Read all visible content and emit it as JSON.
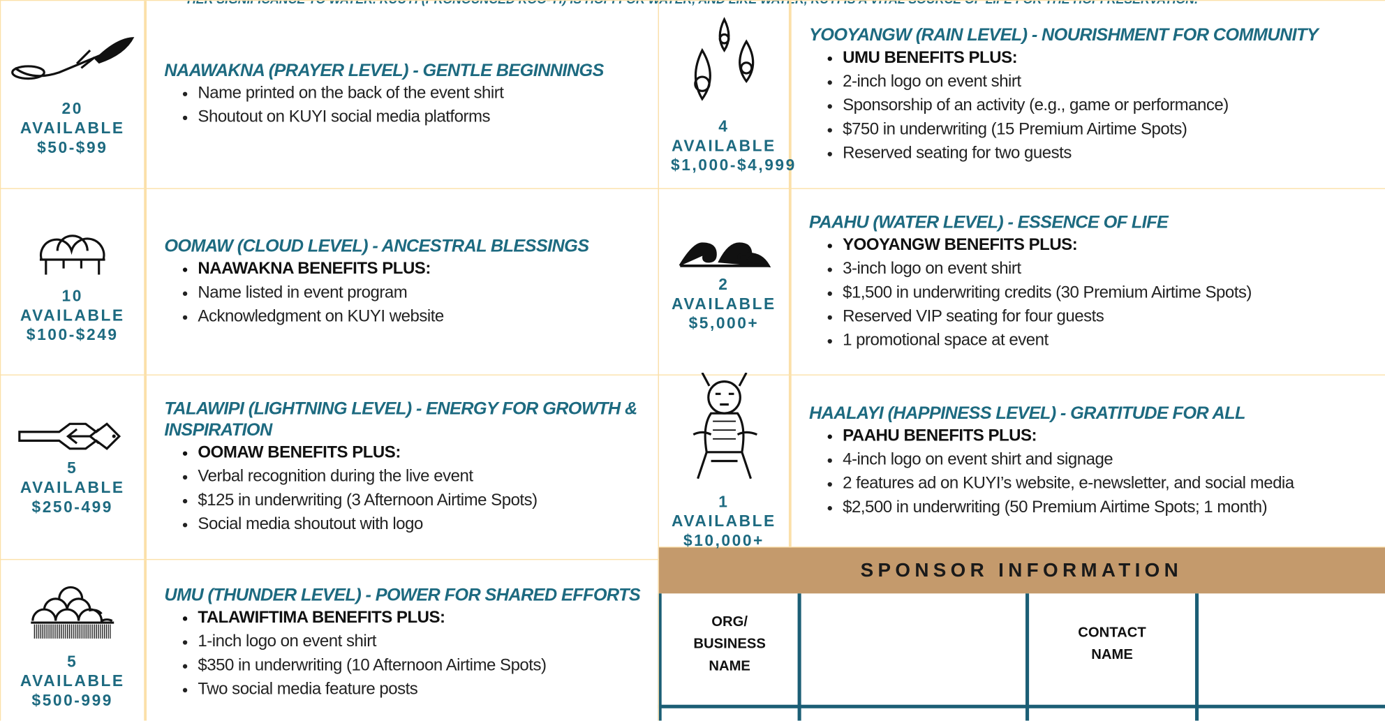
{
  "header": {
    "text": "HER SIGNIFICANCE TO WATER. KUUYI (PRONOUNCED KOO-YI) IS HOPI FOR WATER, AND LIKE WATER, KUYI IS A VITAL SOURCE OF LIFE FOR THE HOPI RESERVATION."
  },
  "left_tiers": [
    {
      "count": "20",
      "available": "AVAILABLE",
      "price": "$50-$99",
      "title": "NAAWAKNA (PRAYER LEVEL) -  GENTLE BEGINNINGS",
      "benefits": [
        "Name printed on the back of the event shirt",
        "Shoutout on KUYI social media platforms"
      ]
    },
    {
      "count": "10",
      "available": "AVAILABLE",
      "price": "$100-$249",
      "title": "OOMAW (CLOUD LEVEL) -  ANCESTRAL BLESSINGS",
      "lead": "NAAWAKNA BENEFITS PLUS:",
      "benefits": [
        "Name listed in event program",
        "Acknowledgment on KUYI website"
      ]
    },
    {
      "count": "5",
      "available": "AVAILABLE",
      "price": "$250-499",
      "title": "TALAWIPI (LIGHTNING LEVEL) -  ENERGY FOR GROWTH & INSPIRATION",
      "lead": "OOMAW BENEFITS PLUS:",
      "benefits": [
        "Verbal recognition during the live event",
        "$125 in underwriting (3 Afternoon Airtime Spots)",
        "Social media shoutout with logo"
      ]
    },
    {
      "count": "5",
      "available": "AVAILABLE",
      "price": "$500-999",
      "title": "UMU (THUNDER LEVEL) - POWER FOR SHARED EFFORTS",
      "lead": "TALAWIFTIMA BENEFITS PLUS:",
      "benefits": [
        "1-inch logo on event shirt",
        "$350 in underwriting (10 Afternoon Airtime Spots)",
        "Two social media feature posts"
      ]
    }
  ],
  "right_tiers": [
    {
      "count": "4",
      "available": "AVAILABLE",
      "price": "$1,000-$4,999",
      "title": "YOOYANGW (RAIN LEVEL) - NOURISHMENT FOR COMMUNITY",
      "lead": "UMU BENEFITS PLUS:",
      "benefits": [
        "2-inch logo on event shirt",
        "Sponsorship of an activity (e.g., game or performance)",
        "$750 in underwriting (15 Premium Airtime Spots)",
        "Reserved seating for two guests"
      ]
    },
    {
      "count": "2",
      "available": "AVAILABLE",
      "price": "$5,000+",
      "title": "PAAHU (WATER LEVEL) -  ESSENCE OF LIFE",
      "lead": "YOOYANGW BENEFITS PLUS:",
      "benefits": [
        "3-inch logo on event shirt",
        "$1,500 in underwriting credits (30 Premium Airtime Spots)",
        "Reserved VIP seating for four guests",
        "1 promotional space at event"
      ]
    },
    {
      "count": "1",
      "available": "AVAILABLE",
      "price": "$10,000+",
      "title": "HAALAYI (HAPPINESS LEVEL) - GRATITUDE FOR ALL",
      "lead": "PAAHU BENEFITS PLUS:",
      "benefits": [
        "4-inch logo on event shirt and signage",
        "2 features ad on KUYI’s website, e-newsletter, and social media",
        "$2,500 in underwriting (50 Premium Airtime Spots; 1 month)"
      ]
    }
  ],
  "sponsor_info": {
    "title": "SPONSOR INFORMATION",
    "fields": [
      "ORG/ BUSINESS NAME",
      "CONTACT NAME"
    ]
  }
}
